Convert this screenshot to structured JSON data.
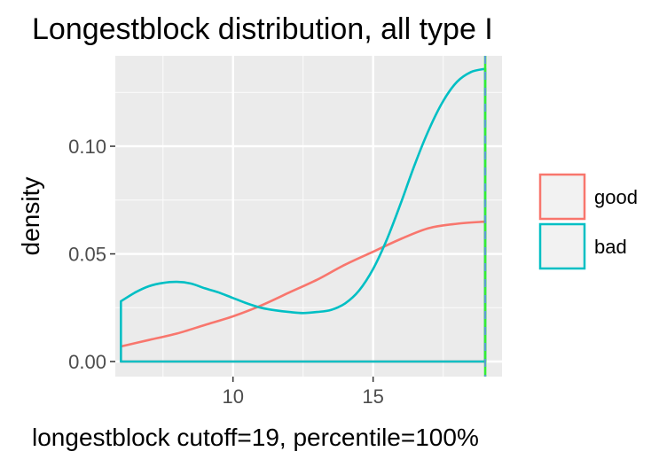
{
  "chart_data": {
    "type": "area",
    "title": "Longestblock distribution, all type I",
    "xlabel": "longestblock cutoff=19, percentile=100%",
    "ylabel": "density",
    "xlim": [
      5.8,
      19.6
    ],
    "ylim": [
      -0.007,
      0.142
    ],
    "x_ticks": [
      10,
      15
    ],
    "y_ticks": [
      0.0,
      0.05,
      0.1
    ],
    "y_tick_labels": [
      "0.00",
      "0.05",
      "0.10"
    ],
    "grid": true,
    "legend_position": "right",
    "cutoff_line": {
      "x": 19,
      "color": "#33ee33",
      "dash_color": "#5b9bd5"
    },
    "series": [
      {
        "name": "good",
        "color": "#f8766d",
        "x": [
          6,
          7,
          8,
          9,
          10,
          11,
          12,
          13,
          14,
          15,
          16,
          17,
          18,
          19
        ],
        "values": [
          0.007,
          0.01,
          0.013,
          0.017,
          0.021,
          0.026,
          0.032,
          0.038,
          0.045,
          0.051,
          0.057,
          0.062,
          0.064,
          0.065
        ]
      },
      {
        "name": "bad",
        "color": "#00bfc4",
        "x": [
          6,
          6.5,
          7,
          7.5,
          8,
          8.5,
          9,
          9.5,
          10,
          10.5,
          11,
          11.5,
          12,
          12.5,
          13,
          13.5,
          14,
          14.5,
          15,
          15.5,
          16,
          16.5,
          17,
          17.5,
          18,
          18.5,
          19
        ],
        "values": [
          0.028,
          0.032,
          0.035,
          0.0365,
          0.037,
          0.0362,
          0.034,
          0.032,
          0.0295,
          0.027,
          0.025,
          0.0238,
          0.023,
          0.0225,
          0.023,
          0.024,
          0.027,
          0.033,
          0.043,
          0.057,
          0.074,
          0.092,
          0.108,
          0.121,
          0.13,
          0.1345,
          0.136
        ]
      }
    ]
  }
}
